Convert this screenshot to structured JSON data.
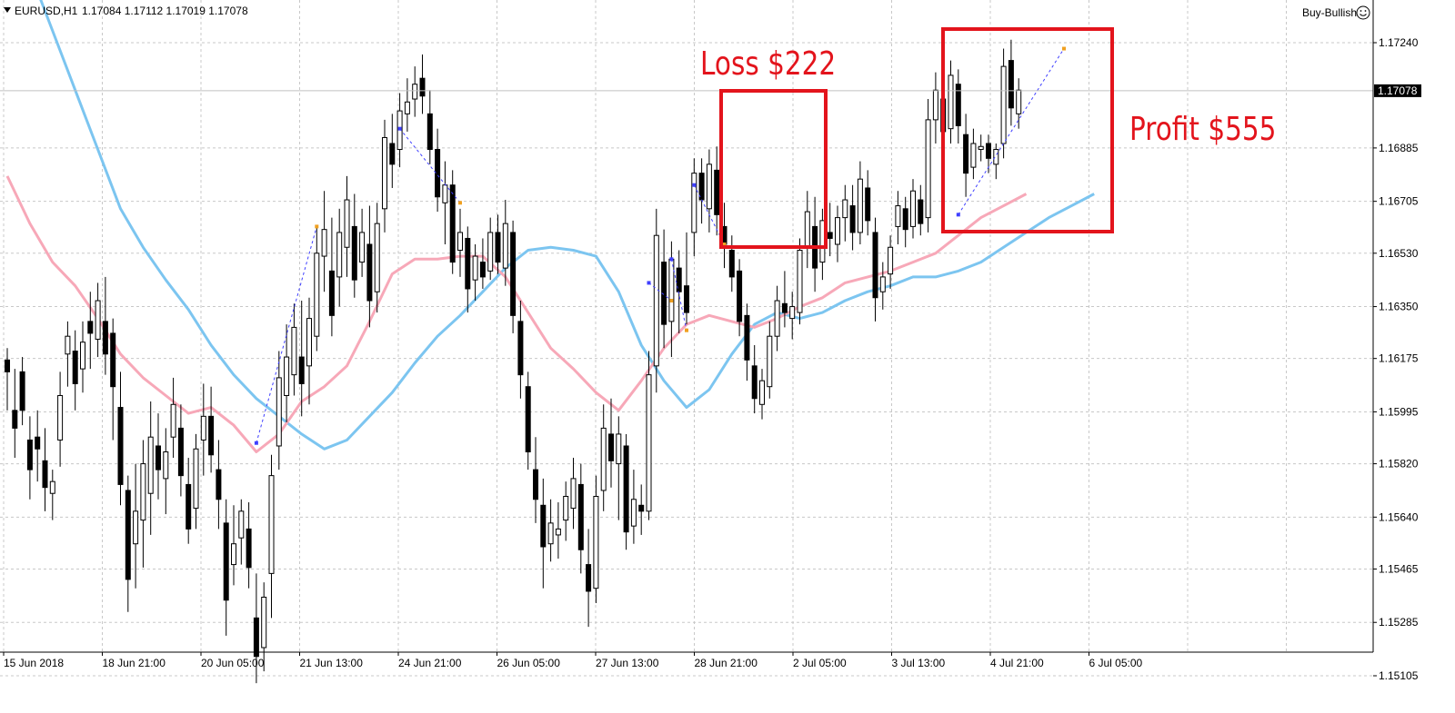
{
  "header": {
    "symbol": "EURUSD,H1",
    "ohlc": "1.17084 1.17112 1.17019 1.17078",
    "expert": "Buy-Bullish",
    "expert_icon": "smiley-icon"
  },
  "colors": {
    "background": "#ffffff",
    "grid": "#c8c8c8",
    "candle": "#000000",
    "ma_fast": "#f7a8b8",
    "ma_slow": "#7cc5f0",
    "annotation": "#e3141c",
    "trade_line": "#3f3fff",
    "price_tag_bg": "#000000",
    "price_tag_text": "#ffffff"
  },
  "annotations": {
    "loss_label": "Loss $222",
    "profit_label": "Profit $555"
  },
  "chart_data": {
    "type": "candlestick",
    "title": "EURUSD,H1",
    "current_price": 1.17078,
    "current_price_label": "1.17078",
    "y_ticks": [
      "1.17240",
      "1.16885",
      "1.16705",
      "1.16530",
      "1.16350",
      "1.16175",
      "1.15995",
      "1.15820",
      "1.15640",
      "1.15465",
      "1.15285",
      "1.15105"
    ],
    "x_ticks": [
      "15 Jun 2018",
      "18 Jun 21:00",
      "20 Jun 05:00",
      "21 Jun 13:00",
      "24 Jun 21:00",
      "26 Jun 05:00",
      "27 Jun 13:00",
      "28 Jun 21:00",
      "2 Jul 05:00",
      "3 Jul 13:00",
      "4 Jul 21:00",
      "6 Jul 05:00"
    ],
    "ylim": [
      1.1499,
      1.1753
    ],
    "grid": true,
    "series": [
      {
        "name": "",
        "kind": "ma_slow",
        "points": [
          [
            0,
            1.1762
          ],
          [
            3,
            1.1748
          ],
          [
            6,
            1.1728
          ],
          [
            9,
            1.1708
          ],
          [
            12,
            1.1688
          ],
          [
            15,
            1.1668
          ],
          [
            18,
            1.1655
          ],
          [
            21,
            1.1644
          ],
          [
            24,
            1.1634
          ],
          [
            27,
            1.1622
          ],
          [
            30,
            1.1612
          ],
          [
            33,
            1.1604
          ],
          [
            36,
            1.1598
          ],
          [
            39,
            1.1592
          ],
          [
            42,
            1.1587
          ],
          [
            45,
            1.159
          ],
          [
            48,
            1.1598
          ],
          [
            51,
            1.1606
          ],
          [
            54,
            1.1616
          ],
          [
            57,
            1.1625
          ],
          [
            60,
            1.1632
          ],
          [
            63,
            1.164
          ],
          [
            66,
            1.1648
          ],
          [
            69,
            1.1654
          ],
          [
            72,
            1.1655
          ],
          [
            75,
            1.1654
          ],
          [
            78,
            1.1652
          ],
          [
            81,
            1.164
          ],
          [
            84,
            1.1622
          ],
          [
            87,
            1.161
          ],
          [
            90,
            1.1601
          ],
          [
            93,
            1.1607
          ],
          [
            96,
            1.1619
          ],
          [
            99,
            1.1629
          ],
          [
            102,
            1.1633
          ],
          [
            105,
            1.1631
          ],
          [
            108,
            1.1633
          ],
          [
            111,
            1.1637
          ],
          [
            114,
            1.164
          ],
          [
            117,
            1.1642
          ],
          [
            120,
            1.1645
          ],
          [
            123,
            1.1645
          ],
          [
            126,
            1.1647
          ],
          [
            129,
            1.165
          ],
          [
            132,
            1.1655
          ],
          [
            135,
            1.166
          ],
          [
            138,
            1.1665
          ],
          [
            141,
            1.1669
          ],
          [
            144,
            1.1673
          ]
        ]
      },
      {
        "name": "",
        "kind": "ma_fast",
        "points": [
          [
            0,
            1.1679
          ],
          [
            3,
            1.1663
          ],
          [
            6,
            1.165
          ],
          [
            9,
            1.1642
          ],
          [
            12,
            1.1631
          ],
          [
            15,
            1.1619
          ],
          [
            18,
            1.1611
          ],
          [
            21,
            1.1605
          ],
          [
            24,
            1.1599
          ],
          [
            27,
            1.1601
          ],
          [
            30,
            1.1595
          ],
          [
            33,
            1.1586
          ],
          [
            36,
            1.1592
          ],
          [
            39,
            1.1603
          ],
          [
            42,
            1.1608
          ],
          [
            45,
            1.1615
          ],
          [
            48,
            1.163
          ],
          [
            51,
            1.1646
          ],
          [
            54,
            1.1651
          ],
          [
            57,
            1.1651
          ],
          [
            60,
            1.1652
          ],
          [
            63,
            1.1652
          ],
          [
            66,
            1.1645
          ],
          [
            69,
            1.1633
          ],
          [
            72,
            1.1621
          ],
          [
            75,
            1.1614
          ],
          [
            78,
            1.1606
          ],
          [
            81,
            1.16
          ],
          [
            84,
            1.161
          ],
          [
            87,
            1.1621
          ],
          [
            90,
            1.1629
          ],
          [
            93,
            1.1632
          ],
          [
            96,
            1.163
          ],
          [
            99,
            1.1628
          ],
          [
            102,
            1.1631
          ],
          [
            105,
            1.1635
          ],
          [
            108,
            1.1638
          ],
          [
            111,
            1.1643
          ],
          [
            114,
            1.1645
          ],
          [
            117,
            1.1647
          ],
          [
            120,
            1.165
          ],
          [
            123,
            1.1653
          ],
          [
            126,
            1.1659
          ],
          [
            129,
            1.1665
          ],
          [
            132,
            1.1669
          ],
          [
            135,
            1.1673
          ]
        ]
      }
    ],
    "ohlc": [
      [
        1.1617,
        1.1621,
        1.16,
        1.1613
      ],
      [
        1.16,
        1.1614,
        1.1584,
        1.1594
      ],
      [
        1.1613,
        1.1618,
        1.1595,
        1.16
      ],
      [
        1.159,
        1.1598,
        1.157,
        1.158
      ],
      [
        1.1591,
        1.16,
        1.1576,
        1.1587
      ],
      [
        1.1583,
        1.1594,
        1.1566,
        1.1574
      ],
      [
        1.1572,
        1.158,
        1.1563,
        1.1576
      ],
      [
        1.159,
        1.1613,
        1.1581,
        1.1605
      ],
      [
        1.1619,
        1.163,
        1.1608,
        1.1625
      ],
      [
        1.162,
        1.1627,
        1.16,
        1.1609
      ],
      [
        1.1614,
        1.163,
        1.1606,
        1.1623
      ],
      [
        1.163,
        1.164,
        1.1614,
        1.1626
      ],
      [
        1.1624,
        1.1643,
        1.1618,
        1.1637
      ],
      [
        1.163,
        1.1645,
        1.1612,
        1.1619
      ],
      [
        1.1626,
        1.1631,
        1.159,
        1.1608
      ],
      [
        1.1601,
        1.1613,
        1.1568,
        1.1575
      ],
      [
        1.1573,
        1.1578,
        1.1532,
        1.1543
      ],
      [
        1.1555,
        1.1582,
        1.154,
        1.1566
      ],
      [
        1.1563,
        1.159,
        1.1547,
        1.1582
      ],
      [
        1.1572,
        1.1603,
        1.1558,
        1.1591
      ],
      [
        1.1588,
        1.1599,
        1.157,
        1.158
      ],
      [
        1.1577,
        1.1594,
        1.1565,
        1.1586
      ],
      [
        1.1591,
        1.1611,
        1.1584,
        1.1602
      ],
      [
        1.1594,
        1.1602,
        1.1571,
        1.1578
      ],
      [
        1.1575,
        1.1584,
        1.1555,
        1.156
      ],
      [
        1.1567,
        1.1592,
        1.156,
        1.1587
      ],
      [
        1.159,
        1.1609,
        1.1578,
        1.1598
      ],
      [
        1.1598,
        1.1608,
        1.1579,
        1.1585
      ],
      [
        1.158,
        1.159,
        1.156,
        1.157
      ],
      [
        1.1562,
        1.157,
        1.1524,
        1.1536
      ],
      [
        1.1548,
        1.1568,
        1.1541,
        1.1555
      ],
      [
        1.1557,
        1.157,
        1.1548,
        1.1566
      ],
      [
        1.156,
        1.1569,
        1.154,
        1.1547
      ],
      [
        1.153,
        1.1545,
        1.1508,
        1.1517
      ],
      [
        1.152,
        1.1542,
        1.1512,
        1.1537
      ],
      [
        1.1545,
        1.1585,
        1.153,
        1.1578
      ],
      [
        1.1588,
        1.162,
        1.158,
        1.1611
      ],
      [
        1.1605,
        1.1629,
        1.1596,
        1.1618
      ],
      [
        1.1612,
        1.1636,
        1.1605,
        1.1628
      ],
      [
        1.1618,
        1.1637,
        1.1598,
        1.1609
      ],
      [
        1.1615,
        1.1638,
        1.1602,
        1.1631
      ],
      [
        1.1625,
        1.1662,
        1.162,
        1.1653
      ],
      [
        1.1652,
        1.1674,
        1.164,
        1.1661
      ],
      [
        1.1647,
        1.1665,
        1.1625,
        1.1632
      ],
      [
        1.1645,
        1.1668,
        1.1635,
        1.166
      ],
      [
        1.1655,
        1.1679,
        1.1645,
        1.1671
      ],
      [
        1.1662,
        1.1673,
        1.1638,
        1.1644
      ],
      [
        1.165,
        1.1668,
        1.1645,
        1.166
      ],
      [
        1.1656,
        1.1669,
        1.1628,
        1.1637
      ],
      [
        1.164,
        1.167,
        1.1633,
        1.1663
      ],
      [
        1.1668,
        1.1698,
        1.166,
        1.1692
      ],
      [
        1.169,
        1.17,
        1.1675,
        1.1683
      ],
      [
        1.1688,
        1.1707,
        1.1682,
        1.1701
      ],
      [
        1.17,
        1.1712,
        1.1694,
        1.1704
      ],
      [
        1.1705,
        1.1716,
        1.1699,
        1.171
      ],
      [
        1.1712,
        1.172,
        1.17,
        1.1706
      ],
      [
        1.17,
        1.1708,
        1.1683,
        1.1688
      ],
      [
        1.1688,
        1.1695,
        1.1667,
        1.1672
      ],
      [
        1.167,
        1.1684,
        1.1656,
        1.1676
      ],
      [
        1.1676,
        1.1681,
        1.1646,
        1.165
      ],
      [
        1.1654,
        1.1668,
        1.1645,
        1.166
      ],
      [
        1.1658,
        1.1662,
        1.1633,
        1.1641
      ],
      [
        1.1644,
        1.1656,
        1.1637,
        1.1652
      ],
      [
        1.165,
        1.1658,
        1.1641,
        1.1645
      ],
      [
        1.1647,
        1.1665,
        1.1644,
        1.166
      ],
      [
        1.166,
        1.1666,
        1.1646,
        1.165
      ],
      [
        1.1648,
        1.1671,
        1.1642,
        1.1663
      ],
      [
        1.166,
        1.1664,
        1.1626,
        1.1632
      ],
      [
        1.163,
        1.1637,
        1.1604,
        1.1612
      ],
      [
        1.1608,
        1.1613,
        1.158,
        1.1586
      ],
      [
        1.158,
        1.1591,
        1.1562,
        1.157
      ],
      [
        1.1568,
        1.1577,
        1.154,
        1.1554
      ],
      [
        1.1555,
        1.157,
        1.1549,
        1.1562
      ],
      [
        1.1558,
        1.1569,
        1.155,
        1.156
      ],
      [
        1.1563,
        1.1576,
        1.1556,
        1.1571
      ],
      [
        1.1567,
        1.1584,
        1.156,
        1.1577
      ],
      [
        1.1575,
        1.1582,
        1.1545,
        1.1553
      ],
      [
        1.1548,
        1.156,
        1.1527,
        1.1539
      ],
      [
        1.154,
        1.1578,
        1.1535,
        1.1571
      ],
      [
        1.1573,
        1.1602,
        1.1566,
        1.1594
      ],
      [
        1.1592,
        1.1604,
        1.1574,
        1.1583
      ],
      [
        1.1582,
        1.1598,
        1.1563,
        1.1592
      ],
      [
        1.1588,
        1.1592,
        1.1553,
        1.1559
      ],
      [
        1.1561,
        1.158,
        1.1555,
        1.157
      ],
      [
        1.1568,
        1.1575,
        1.1558,
        1.1566
      ],
      [
        1.1566,
        1.162,
        1.1563,
        1.1612
      ],
      [
        1.1615,
        1.1668,
        1.1606,
        1.1659
      ],
      [
        1.165,
        1.1661,
        1.1621,
        1.1629
      ],
      [
        1.163,
        1.1657,
        1.1618,
        1.1651
      ],
      [
        1.1648,
        1.1654,
        1.1626,
        1.164
      ],
      [
        1.1642,
        1.166,
        1.1629,
        1.1633
      ],
      [
        1.166,
        1.1685,
        1.1652,
        1.168
      ],
      [
        1.168,
        1.1685,
        1.1663,
        1.1671
      ],
      [
        1.1668,
        1.1688,
        1.166,
        1.1683
      ],
      [
        1.1681,
        1.1689,
        1.1659,
        1.1666
      ],
      [
        1.1662,
        1.167,
        1.1648,
        1.1656
      ],
      [
        1.1654,
        1.1659,
        1.164,
        1.1645
      ],
      [
        1.1647,
        1.1651,
        1.1625,
        1.163
      ],
      [
        1.1632,
        1.1636,
        1.161,
        1.1617
      ],
      [
        1.1615,
        1.1622,
        1.1599,
        1.1604
      ],
      [
        1.1602,
        1.1614,
        1.1597,
        1.161
      ],
      [
        1.1608,
        1.163,
        1.1604,
        1.1625
      ],
      [
        1.1625,
        1.1642,
        1.162,
        1.1637
      ],
      [
        1.1636,
        1.1647,
        1.1628,
        1.1633
      ],
      [
        1.1631,
        1.164,
        1.1624,
        1.1635
      ],
      [
        1.1633,
        1.1658,
        1.1629,
        1.1654
      ],
      [
        1.1655,
        1.1674,
        1.1648,
        1.1667
      ],
      [
        1.1662,
        1.1672,
        1.164,
        1.1648
      ],
      [
        1.165,
        1.1668,
        1.1644,
        1.1664
      ],
      [
        1.166,
        1.167,
        1.1652,
        1.1658
      ],
      [
        1.1656,
        1.1669,
        1.165,
        1.1665
      ],
      [
        1.1665,
        1.1676,
        1.1657,
        1.1671
      ],
      [
        1.1669,
        1.1676,
        1.1654,
        1.166
      ],
      [
        1.166,
        1.1684,
        1.1656,
        1.1678
      ],
      [
        1.1675,
        1.1681,
        1.1659,
        1.1664
      ],
      [
        1.166,
        1.1665,
        1.163,
        1.1638
      ],
      [
        1.164,
        1.165,
        1.1634,
        1.1645
      ],
      [
        1.1646,
        1.1659,
        1.1641,
        1.1655
      ],
      [
        1.1662,
        1.1674,
        1.1656,
        1.1669
      ],
      [
        1.1668,
        1.1672,
        1.1655,
        1.1661
      ],
      [
        1.1662,
        1.1678,
        1.1658,
        1.1674
      ],
      [
        1.1671,
        1.1676,
        1.1659,
        1.1663
      ],
      [
        1.1665,
        1.1705,
        1.166,
        1.1698
      ],
      [
        1.1698,
        1.1714,
        1.169,
        1.1708
      ],
      [
        1.1705,
        1.1709,
        1.1688,
        1.1694
      ],
      [
        1.1695,
        1.1718,
        1.169,
        1.1713
      ],
      [
        1.171,
        1.1715,
        1.169,
        1.1696
      ],
      [
        1.1693,
        1.17,
        1.1672,
        1.168
      ],
      [
        1.1682,
        1.1695,
        1.1678,
        1.169
      ],
      [
        1.1688,
        1.1693,
        1.1684,
        1.1689
      ],
      [
        1.169,
        1.1693,
        1.168,
        1.1685
      ],
      [
        1.1683,
        1.169,
        1.1678,
        1.1688
      ],
      [
        1.169,
        1.1722,
        1.1685,
        1.1716
      ],
      [
        1.1718,
        1.1725,
        1.1696,
        1.1702
      ],
      [
        1.17,
        1.1712,
        1.1695,
        1.1708
      ]
    ],
    "trades": [
      {
        "from": [
          33,
          1.1589
        ],
        "to": [
          41,
          1.1662
        ]
      },
      {
        "from": [
          52,
          1.1695
        ],
        "to": [
          60,
          1.167
        ]
      },
      {
        "from": [
          85,
          1.1643
        ],
        "to": [
          88,
          1.1637
        ]
      },
      {
        "from": [
          88,
          1.1651
        ],
        "to": [
          90,
          1.1627
        ]
      },
      {
        "from": [
          91,
          1.1676
        ],
        "to": [
          95,
          1.1656
        ]
      },
      {
        "from": [
          126,
          1.1666
        ],
        "to": [
          140,
          1.1722
        ]
      }
    ]
  }
}
